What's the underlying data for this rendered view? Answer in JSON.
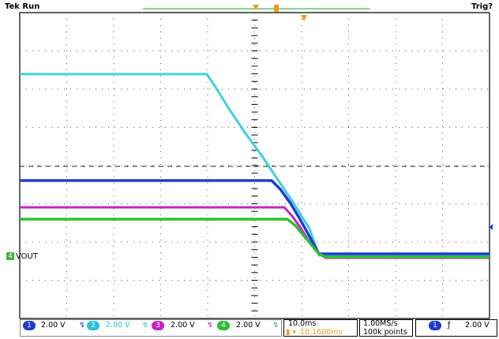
{
  "status": {
    "left": "Tek Run",
    "right": "Trig?"
  },
  "vout_label": {
    "badge": "4",
    "text": "VOUT"
  },
  "channels": [
    {
      "id": "1",
      "label": "2.00 V",
      "color": "#1f3bd6",
      "icon": "bandwidth-limit-icon",
      "glyph": "↯"
    },
    {
      "id": "2",
      "label": "2.00 V",
      "color": "#26c5d8",
      "icon": "bandwidth-limit-icon",
      "glyph": "↯"
    },
    {
      "id": "3",
      "label": "2.00 V",
      "color": "#c228c2",
      "icon": "bandwidth-limit-icon",
      "glyph": "↯"
    },
    {
      "id": "4",
      "label": "2.00 V",
      "color": "#2fbf2f",
      "icon": "bandwidth-limit-icon",
      "glyph": "↯"
    }
  ],
  "timebase": {
    "scale": "10.0ms",
    "position": "10.1600ms"
  },
  "acquisition": {
    "rate": "1.00MS/s",
    "points": "100k points"
  },
  "trigger": {
    "source": "1",
    "slope_glyph": "ƒ",
    "level": "2.00 V"
  },
  "trace_colors": {
    "ch1": "#1f3bd6",
    "ch2": "#3fd0df",
    "ch3": "#c228c2",
    "ch4": "#2fbf2f"
  }
}
